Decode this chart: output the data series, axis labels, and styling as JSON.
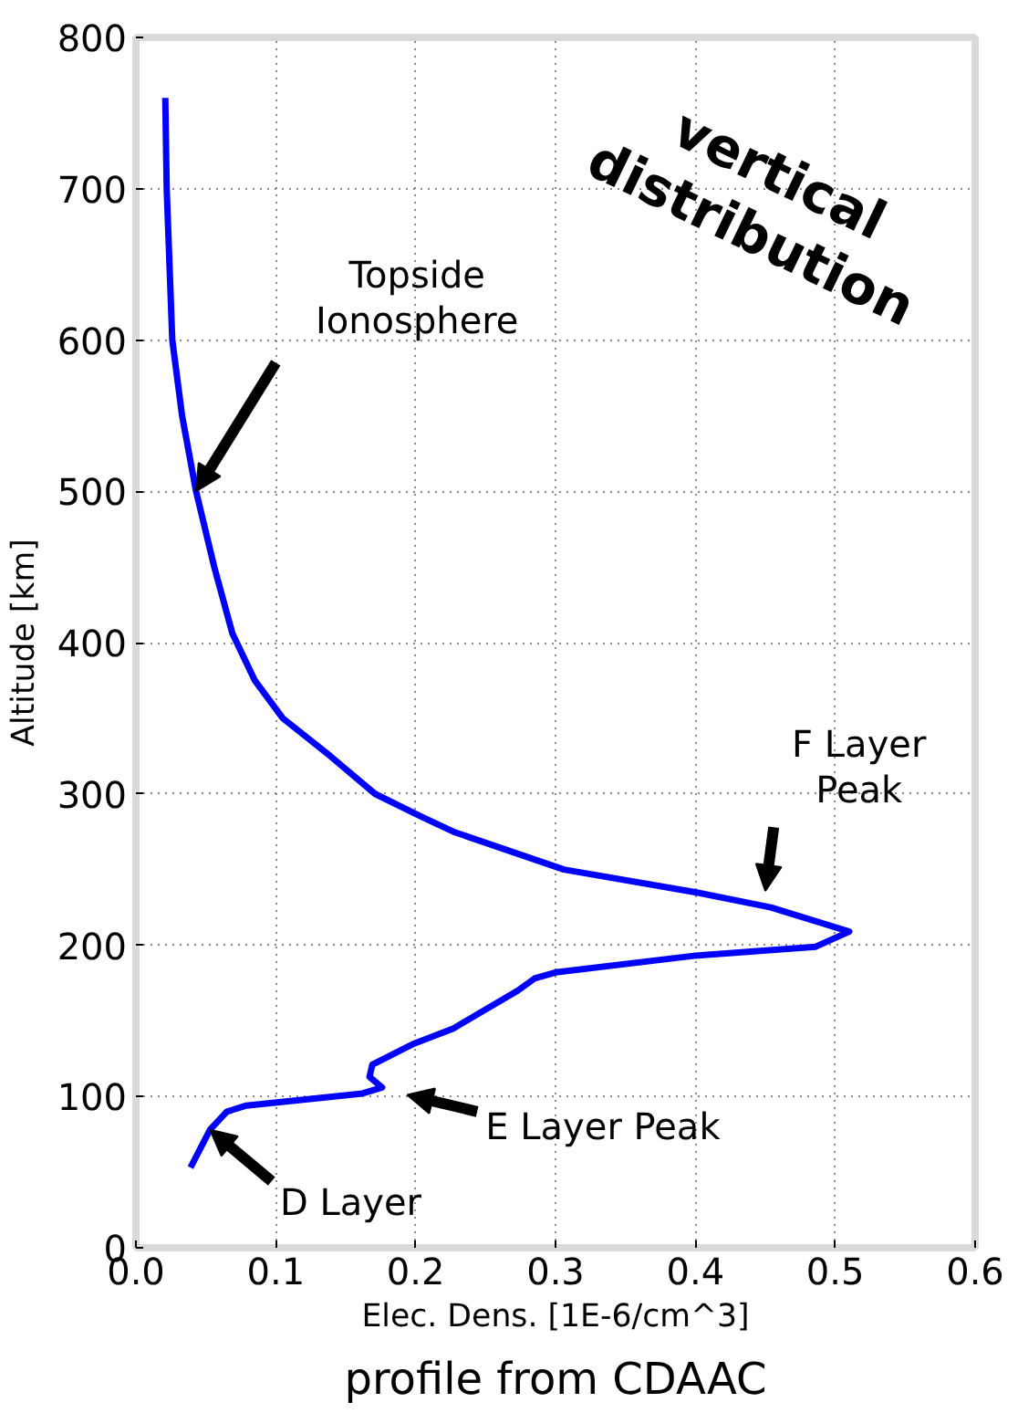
{
  "chart_data": {
    "type": "line",
    "title": "profile from CDAAC",
    "xlabel": "Elec. Dens. [1E-6/cm^3]",
    "ylabel": "Altitude [km]",
    "x": [
      0.021,
      0.022,
      0.024,
      0.026,
      0.033,
      0.043,
      0.056,
      0.069,
      0.085,
      0.105,
      0.139,
      0.171,
      0.204,
      0.227,
      0.306,
      0.4,
      0.454,
      0.51,
      0.486,
      0.399,
      0.3,
      0.285,
      0.273,
      0.227,
      0.199,
      0.169,
      0.167,
      0.176,
      0.162,
      0.079,
      0.065,
      0.053,
      0.039
    ],
    "series": [
      {
        "color": "#0000ff",
        "values": [
          760,
          700,
          650,
          600,
          550,
          500,
          450,
          406,
          375,
          350,
          325,
          300,
          285,
          275,
          250,
          235,
          225,
          209,
          199,
          193,
          182,
          178,
          170,
          145,
          135,
          121,
          113,
          106,
          102,
          94,
          90,
          78,
          53
        ]
      }
    ],
    "xlim": [
      0,
      0.6
    ],
    "ylim": [
      0,
      800
    ],
    "xticks": [
      {
        "value": 0,
        "label": "0.0"
      },
      0.1,
      0.2,
      0.3,
      0.4,
      0.5,
      0.6
    ],
    "yticks": [
      0,
      100,
      200,
      300,
      400,
      500,
      600,
      700,
      800
    ],
    "grid": true,
    "marker": "none",
    "line_style": "solid",
    "annotations": [
      {
        "text": "Topside\nIonosphere",
        "x": 0.043,
        "y": 500
      },
      "F Layer\nPeak",
      "E Layer Peak",
      {
        "text": "D Layer",
        "x": 0.053,
        "y": 78
      },
      "vertical\ndistribution"
    ]
  }
}
